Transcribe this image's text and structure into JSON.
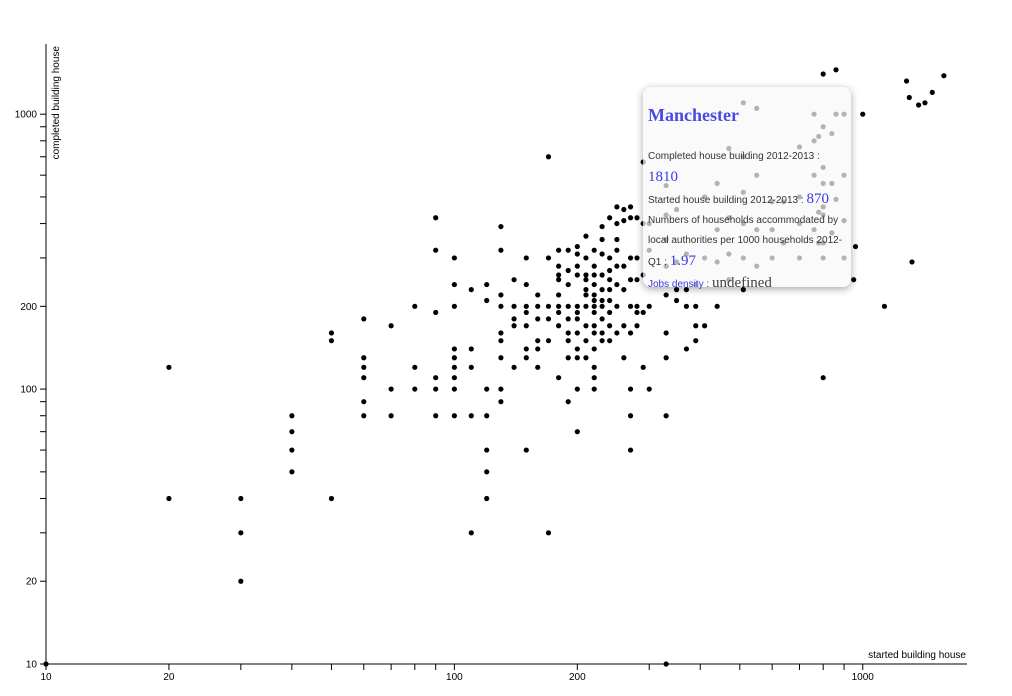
{
  "chart_data": {
    "type": "scatter",
    "xlabel": "started building house",
    "ylabel": "completed building house",
    "x_scale": "log",
    "y_scale": "log",
    "xlim": [
      10,
      1800
    ],
    "ylim": [
      10,
      1800
    ],
    "x_ticks": [
      "10",
      "20",
      "100",
      "200",
      "1000"
    ],
    "y_ticks": [
      "10",
      "20",
      "100",
      "200",
      "1000"
    ],
    "grid": false,
    "point_color": "#000000",
    "points": [
      [
        10,
        10
      ],
      [
        20,
        120
      ],
      [
        20,
        40
      ],
      [
        30,
        40
      ],
      [
        30,
        30
      ],
      [
        30,
        20
      ],
      [
        40,
        80
      ],
      [
        40,
        70
      ],
      [
        40,
        60
      ],
      [
        40,
        50
      ],
      [
        50,
        160
      ],
      [
        50,
        150
      ],
      [
        50,
        40
      ],
      [
        60,
        180
      ],
      [
        60,
        130
      ],
      [
        60,
        120
      ],
      [
        60,
        110
      ],
      [
        60,
        90
      ],
      [
        60,
        80
      ],
      [
        70,
        170
      ],
      [
        70,
        100
      ],
      [
        70,
        80
      ],
      [
        80,
        200
      ],
      [
        80,
        120
      ],
      [
        80,
        100
      ],
      [
        90,
        420
      ],
      [
        90,
        320
      ],
      [
        90,
        190
      ],
      [
        90,
        110
      ],
      [
        90,
        100
      ],
      [
        90,
        80
      ],
      [
        100,
        300
      ],
      [
        100,
        240
      ],
      [
        100,
        200
      ],
      [
        100,
        140
      ],
      [
        100,
        130
      ],
      [
        100,
        120
      ],
      [
        100,
        110
      ],
      [
        100,
        100
      ],
      [
        100,
        80
      ],
      [
        110,
        230
      ],
      [
        110,
        140
      ],
      [
        110,
        120
      ],
      [
        110,
        80
      ],
      [
        110,
        30
      ],
      [
        120,
        240
      ],
      [
        120,
        210
      ],
      [
        120,
        100
      ],
      [
        120,
        80
      ],
      [
        120,
        60
      ],
      [
        120,
        50
      ],
      [
        120,
        40
      ],
      [
        130,
        390
      ],
      [
        130,
        320
      ],
      [
        130,
        220
      ],
      [
        130,
        200
      ],
      [
        130,
        160
      ],
      [
        130,
        150
      ],
      [
        130,
        130
      ],
      [
        130,
        100
      ],
      [
        130,
        90
      ],
      [
        140,
        250
      ],
      [
        140,
        200
      ],
      [
        140,
        180
      ],
      [
        140,
        170
      ],
      [
        140,
        120
      ],
      [
        150,
        300
      ],
      [
        150,
        240
      ],
      [
        150,
        200
      ],
      [
        150,
        190
      ],
      [
        150,
        170
      ],
      [
        150,
        140
      ],
      [
        150,
        130
      ],
      [
        150,
        60
      ],
      [
        160,
        220
      ],
      [
        160,
        200
      ],
      [
        160,
        180
      ],
      [
        160,
        150
      ],
      [
        160,
        140
      ],
      [
        160,
        120
      ],
      [
        170,
        700
      ],
      [
        170,
        300
      ],
      [
        170,
        200
      ],
      [
        170,
        180
      ],
      [
        170,
        150
      ],
      [
        170,
        30
      ],
      [
        180,
        320
      ],
      [
        180,
        280
      ],
      [
        180,
        260
      ],
      [
        180,
        250
      ],
      [
        180,
        220
      ],
      [
        180,
        200
      ],
      [
        180,
        190
      ],
      [
        180,
        170
      ],
      [
        180,
        110
      ],
      [
        190,
        320
      ],
      [
        190,
        270
      ],
      [
        190,
        240
      ],
      [
        190,
        200
      ],
      [
        190,
        180
      ],
      [
        190,
        160
      ],
      [
        190,
        150
      ],
      [
        190,
        130
      ],
      [
        190,
        90
      ],
      [
        200,
        330
      ],
      [
        200,
        310
      ],
      [
        200,
        280
      ],
      [
        200,
        260
      ],
      [
        200,
        200
      ],
      [
        200,
        190
      ],
      [
        200,
        180
      ],
      [
        200,
        160
      ],
      [
        200,
        140
      ],
      [
        200,
        130
      ],
      [
        200,
        100
      ],
      [
        200,
        70
      ],
      [
        210,
        360
      ],
      [
        210,
        300
      ],
      [
        210,
        260
      ],
      [
        210,
        250
      ],
      [
        210,
        230
      ],
      [
        210,
        220
      ],
      [
        210,
        200
      ],
      [
        210,
        170
      ],
      [
        210,
        150
      ],
      [
        210,
        130
      ],
      [
        220,
        320
      ],
      [
        220,
        280
      ],
      [
        220,
        260
      ],
      [
        220,
        240
      ],
      [
        220,
        220
      ],
      [
        220,
        210
      ],
      [
        220,
        200
      ],
      [
        220,
        190
      ],
      [
        220,
        170
      ],
      [
        220,
        160
      ],
      [
        220,
        140
      ],
      [
        220,
        120
      ],
      [
        220,
        110
      ],
      [
        220,
        100
      ],
      [
        230,
        390
      ],
      [
        230,
        350
      ],
      [
        230,
        310
      ],
      [
        230,
        260
      ],
      [
        230,
        230
      ],
      [
        230,
        210
      ],
      [
        230,
        200
      ],
      [
        230,
        180
      ],
      [
        230,
        160
      ],
      [
        230,
        150
      ],
      [
        240,
        420
      ],
      [
        240,
        300
      ],
      [
        240,
        270
      ],
      [
        240,
        250
      ],
      [
        240,
        230
      ],
      [
        240,
        210
      ],
      [
        240,
        190
      ],
      [
        240,
        170
      ],
      [
        240,
        150
      ],
      [
        250,
        460
      ],
      [
        250,
        400
      ],
      [
        250,
        350
      ],
      [
        250,
        320
      ],
      [
        250,
        280
      ],
      [
        250,
        240
      ],
      [
        250,
        200
      ],
      [
        250,
        160
      ],
      [
        260,
        450
      ],
      [
        260,
        410
      ],
      [
        260,
        280
      ],
      [
        260,
        230
      ],
      [
        260,
        170
      ],
      [
        260,
        130
      ],
      [
        270,
        460
      ],
      [
        270,
        420
      ],
      [
        270,
        300
      ],
      [
        270,
        250
      ],
      [
        270,
        200
      ],
      [
        270,
        160
      ],
      [
        270,
        100
      ],
      [
        270,
        80
      ],
      [
        270,
        60
      ],
      [
        280,
        420
      ],
      [
        280,
        300
      ],
      [
        280,
        250
      ],
      [
        280,
        200
      ],
      [
        280,
        190
      ],
      [
        280,
        170
      ],
      [
        290,
        670
      ],
      [
        290,
        400
      ],
      [
        290,
        260
      ],
      [
        290,
        190
      ],
      [
        290,
        120
      ],
      [
        300,
        400
      ],
      [
        300,
        320
      ],
      [
        300,
        200
      ],
      [
        300,
        100
      ],
      [
        330,
        550
      ],
      [
        330,
        430
      ],
      [
        330,
        350
      ],
      [
        330,
        280
      ],
      [
        330,
        220
      ],
      [
        330,
        160
      ],
      [
        330,
        130
      ],
      [
        330,
        80
      ],
      [
        330,
        10
      ],
      [
        350,
        450
      ],
      [
        350,
        290
      ],
      [
        350,
        230
      ],
      [
        350,
        210
      ],
      [
        370,
        310
      ],
      [
        370,
        230
      ],
      [
        370,
        200
      ],
      [
        370,
        140
      ],
      [
        390,
        240
      ],
      [
        390,
        200
      ],
      [
        390,
        170
      ],
      [
        390,
        150
      ],
      [
        410,
        500
      ],
      [
        410,
        300
      ],
      [
        410,
        170
      ],
      [
        440,
        560
      ],
      [
        440,
        380
      ],
      [
        440,
        290
      ],
      [
        440,
        200
      ],
      [
        470,
        750
      ],
      [
        470,
        420
      ],
      [
        470,
        310
      ],
      [
        470,
        250
      ],
      [
        510,
        1100
      ],
      [
        510,
        700
      ],
      [
        510,
        520
      ],
      [
        510,
        400
      ],
      [
        510,
        300
      ],
      [
        510,
        230
      ],
      [
        550,
        1050
      ],
      [
        550,
        600
      ],
      [
        550,
        380
      ],
      [
        550,
        280
      ],
      [
        600,
        480
      ],
      [
        600,
        380
      ],
      [
        600,
        300
      ],
      [
        640,
        480
      ],
      [
        640,
        340
      ],
      [
        700,
        760
      ],
      [
        700,
        500
      ],
      [
        700,
        400
      ],
      [
        700,
        300
      ],
      [
        760,
        1000
      ],
      [
        760,
        800
      ],
      [
        760,
        600
      ],
      [
        760,
        380
      ],
      [
        780,
        830
      ],
      [
        780,
        440
      ],
      [
        780,
        340
      ],
      [
        800,
        1400
      ],
      [
        800,
        900
      ],
      [
        800,
        640
      ],
      [
        800,
        560
      ],
      [
        800,
        460
      ],
      [
        800,
        430
      ],
      [
        800,
        340
      ],
      [
        800,
        300
      ],
      [
        800,
        110
      ],
      [
        840,
        850
      ],
      [
        840,
        560
      ],
      [
        840,
        370
      ],
      [
        860,
        1450
      ],
      [
        860,
        1000
      ],
      [
        860,
        490
      ],
      [
        900,
        1000
      ],
      [
        900,
        600
      ],
      [
        900,
        410
      ],
      [
        900,
        300
      ],
      [
        950,
        250
      ],
      [
        960,
        330
      ],
      [
        1000,
        1000
      ],
      [
        1130,
        200
      ],
      [
        1280,
        1320
      ],
      [
        1300,
        1150
      ],
      [
        1320,
        290
      ],
      [
        1370,
        1080
      ],
      [
        1420,
        1100
      ],
      [
        1480,
        1200
      ],
      [
        1580,
        1380
      ]
    ]
  },
  "tooltip": {
    "title": "Manchester",
    "completed_label": "Completed house building 2012-2013 :",
    "completed_value": "1810",
    "started_label": "Started house building 2012-2013 :",
    "started_value": "870",
    "households_label": "Numbers of households accommodated by local authorities per 1000 households 2012-Q1 :",
    "households_value": "1.97",
    "jobs_label": "Jobs density",
    "jobs_sep": " : ",
    "jobs_value": "undefined"
  }
}
